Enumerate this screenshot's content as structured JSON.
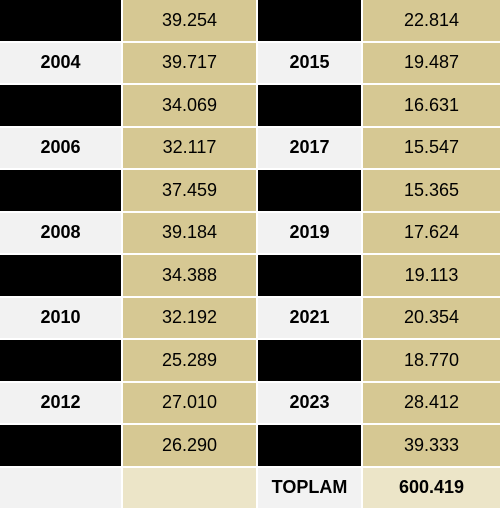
{
  "rows": [
    {
      "year_left": "",
      "value_left": "39.254",
      "year_right": "",
      "value_right": "22.814"
    },
    {
      "year_left": "2004",
      "value_left": "39.717",
      "year_right": "2015",
      "value_right": "19.487"
    },
    {
      "year_left": "",
      "value_left": "34.069",
      "year_right": "",
      "value_right": "16.631"
    },
    {
      "year_left": "2006",
      "value_left": "32.117",
      "year_right": "2017",
      "value_right": "15.547"
    },
    {
      "year_left": "",
      "value_left": "37.459",
      "year_right": "",
      "value_right": "15.365"
    },
    {
      "year_left": "2008",
      "value_left": "39.184",
      "year_right": "2019",
      "value_right": "17.624"
    },
    {
      "year_left": "",
      "value_left": "34.388",
      "year_right": "",
      "value_right": "19.113"
    },
    {
      "year_left": "2010",
      "value_left": "32.192",
      "year_right": "2021",
      "value_right": "20.354"
    },
    {
      "year_left": "",
      "value_left": "25.289",
      "year_right": "",
      "value_right": "18.770"
    },
    {
      "year_left": "2012",
      "value_left": "27.010",
      "year_right": "2023",
      "value_right": "28.412"
    },
    {
      "year_left": "",
      "value_left": "26.290",
      "year_right": "",
      "value_right": "39.333"
    }
  ],
  "total": {
    "label": "TOPLAM",
    "value": "600.419"
  },
  "colors": {
    "dark": "#000000",
    "light": "#f2f2f2",
    "gold": "#d6c893",
    "gold_light": "#ece5c8"
  }
}
